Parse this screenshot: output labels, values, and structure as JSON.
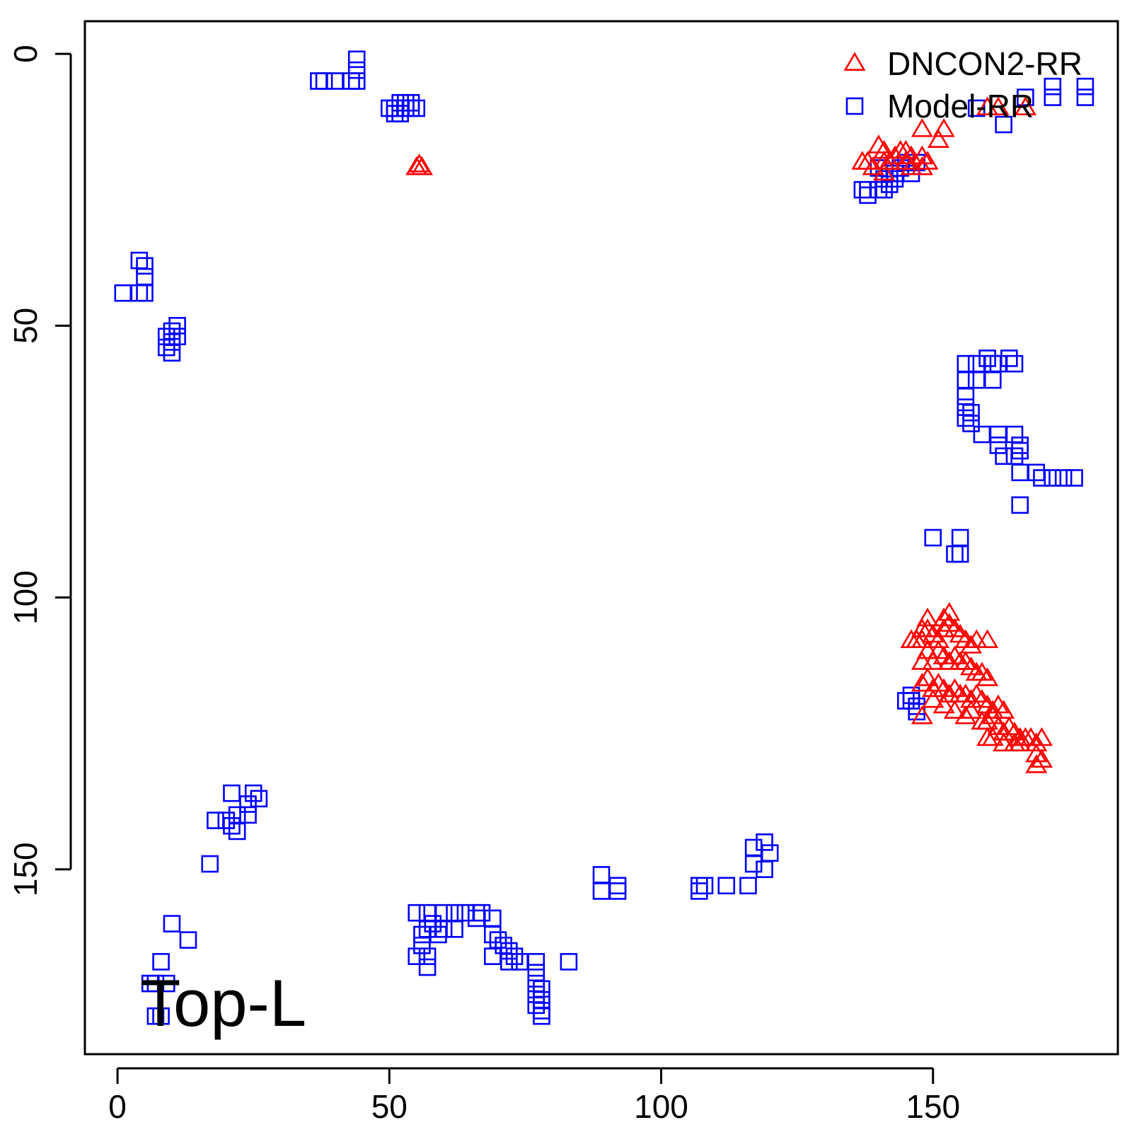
{
  "chart_data": {
    "type": "scatter",
    "title": "",
    "xlabel": "",
    "ylabel": "",
    "xlim": [
      -6,
      184
    ],
    "ylim": [
      184,
      -6
    ],
    "y_reversed": true,
    "x_ticks": [
      0,
      50,
      100,
      150
    ],
    "y_ticks": [
      0,
      50,
      100,
      150
    ],
    "x_tick_labels": [
      "0",
      "50",
      "100",
      "150"
    ],
    "y_tick_labels": [
      "0",
      "50",
      "100",
      "150"
    ],
    "grid": false,
    "legend_position": "top-right",
    "annotation": "Top-L",
    "series": [
      {
        "name": "DNCON2-RR",
        "marker": "triangle",
        "color": "#ff0000",
        "points": [
          [
            55,
            21
          ],
          [
            56,
            21
          ],
          [
            55.5,
            20.5
          ],
          [
            137,
            20
          ],
          [
            138,
            20
          ],
          [
            139,
            21
          ],
          [
            140,
            17
          ],
          [
            141,
            18
          ],
          [
            141,
            20
          ],
          [
            142,
            20
          ],
          [
            141,
            22
          ],
          [
            143,
            19
          ],
          [
            144,
            18
          ],
          [
            145,
            18
          ],
          [
            145,
            20
          ],
          [
            146,
            19
          ],
          [
            146,
            21
          ],
          [
            148,
            19
          ],
          [
            148,
            21
          ],
          [
            149,
            20
          ],
          [
            148,
            14
          ],
          [
            151,
            16
          ],
          [
            152,
            14
          ],
          [
            160,
            10
          ],
          [
            162,
            10
          ],
          [
            167,
            10
          ],
          [
            146,
            108
          ],
          [
            147,
            108
          ],
          [
            148,
            106
          ],
          [
            148,
            108
          ],
          [
            149,
            104
          ],
          [
            149,
            106
          ],
          [
            150,
            107
          ],
          [
            151,
            108
          ],
          [
            152,
            104
          ],
          [
            152,
            106
          ],
          [
            153,
            103
          ],
          [
            153,
            105
          ],
          [
            154,
            106
          ],
          [
            155,
            107
          ],
          [
            156,
            108
          ],
          [
            157,
            109
          ],
          [
            158,
            108
          ],
          [
            160,
            108
          ],
          [
            148,
            112
          ],
          [
            149,
            110
          ],
          [
            150,
            112
          ],
          [
            151,
            110
          ],
          [
            152,
            111
          ],
          [
            153,
            112
          ],
          [
            154,
            111
          ],
          [
            155,
            112
          ],
          [
            156,
            112
          ],
          [
            157,
            113
          ],
          [
            158,
            114
          ],
          [
            159,
            114
          ],
          [
            160,
            115
          ],
          [
            148,
            116
          ],
          [
            149,
            115
          ],
          [
            150,
            117
          ],
          [
            151,
            116
          ],
          [
            152,
            117
          ],
          [
            153,
            118
          ],
          [
            154,
            117
          ],
          [
            155,
            118
          ],
          [
            156,
            118
          ],
          [
            157,
            119
          ],
          [
            158,
            118
          ],
          [
            159,
            119
          ],
          [
            160,
            120
          ],
          [
            161,
            121
          ],
          [
            162,
            120
          ],
          [
            163,
            121
          ],
          [
            148,
            122
          ],
          [
            150,
            119
          ],
          [
            152,
            120
          ],
          [
            154,
            121
          ],
          [
            156,
            122
          ],
          [
            157,
            121
          ],
          [
            159,
            123
          ],
          [
            160,
            123
          ],
          [
            161,
            122
          ],
          [
            162,
            124
          ],
          [
            163,
            125
          ],
          [
            164,
            124
          ],
          [
            165,
            125
          ],
          [
            166,
            126
          ],
          [
            167,
            126
          ],
          [
            168,
            126
          ],
          [
            169,
            127
          ],
          [
            169,
            129
          ],
          [
            170,
            126
          ],
          [
            169,
            131
          ],
          [
            170,
            130
          ],
          [
            166,
            127
          ],
          [
            165,
            127
          ],
          [
            163,
            127
          ],
          [
            161,
            126
          ],
          [
            160,
            126
          ]
        ]
      },
      {
        "name": "Model-RR",
        "marker": "square",
        "color": "#0000ff",
        "points": [
          [
            37,
            5
          ],
          [
            38,
            5
          ],
          [
            40,
            5
          ],
          [
            43,
            5
          ],
          [
            44,
            5
          ],
          [
            44,
            3
          ],
          [
            44,
            1
          ],
          [
            50,
            10
          ],
          [
            51,
            10
          ],
          [
            53,
            10
          ],
          [
            54,
            10
          ],
          [
            52,
            9
          ],
          [
            53,
            9
          ],
          [
            54,
            9
          ],
          [
            55,
            10
          ],
          [
            52,
            11
          ],
          [
            51,
            11
          ],
          [
            4,
            38
          ],
          [
            5,
            39
          ],
          [
            5,
            41
          ],
          [
            5,
            44
          ],
          [
            4,
            44
          ],
          [
            1,
            44
          ],
          [
            9,
            52
          ],
          [
            10,
            51
          ],
          [
            10,
            53
          ],
          [
            11,
            50
          ],
          [
            11,
            52
          ],
          [
            9,
            54
          ],
          [
            10,
            55
          ],
          [
            137,
            25
          ],
          [
            138,
            25
          ],
          [
            138,
            26
          ],
          [
            140,
            25
          ],
          [
            141,
            25
          ],
          [
            142,
            24
          ],
          [
            142,
            22
          ],
          [
            140,
            21
          ],
          [
            141,
            23
          ],
          [
            143,
            22
          ],
          [
            144,
            21
          ],
          [
            145,
            20
          ],
          [
            147,
            20
          ],
          [
            146,
            22
          ],
          [
            143,
            23
          ],
          [
            158,
            10
          ],
          [
            163,
            13
          ],
          [
            167,
            8
          ],
          [
            172,
            6
          ],
          [
            172,
            8
          ],
          [
            178,
            6
          ],
          [
            178,
            8
          ],
          [
            156,
            57
          ],
          [
            158,
            57
          ],
          [
            160,
            56
          ],
          [
            161,
            57
          ],
          [
            162,
            57
          ],
          [
            164,
            56
          ],
          [
            165,
            57
          ],
          [
            156,
            60
          ],
          [
            158,
            60
          ],
          [
            161,
            60
          ],
          [
            156,
            63
          ],
          [
            156,
            65
          ],
          [
            157,
            66
          ],
          [
            157,
            68
          ],
          [
            156,
            67
          ],
          [
            159,
            70
          ],
          [
            162,
            70
          ],
          [
            165,
            70
          ],
          [
            166,
            72
          ],
          [
            166,
            73
          ],
          [
            165,
            74
          ],
          [
            163,
            74
          ],
          [
            162,
            72
          ],
          [
            166,
            77
          ],
          [
            169,
            77
          ],
          [
            170,
            78
          ],
          [
            172,
            78
          ],
          [
            174,
            78
          ],
          [
            176,
            78
          ],
          [
            166,
            83
          ],
          [
            150,
            89
          ],
          [
            155,
            89
          ],
          [
            154,
            92
          ],
          [
            155,
            92
          ],
          [
            146,
            119
          ],
          [
            147,
            120
          ],
          [
            147,
            121
          ],
          [
            145,
            119
          ],
          [
            146,
            118
          ],
          [
            21,
            136
          ],
          [
            25,
            136
          ],
          [
            26,
            137
          ],
          [
            24,
            138
          ],
          [
            24,
            140
          ],
          [
            22,
            140
          ],
          [
            20,
            141
          ],
          [
            18,
            141
          ],
          [
            21,
            142
          ],
          [
            22,
            143
          ],
          [
            17,
            149
          ],
          [
            10,
            160
          ],
          [
            13,
            163
          ],
          [
            8,
            167
          ],
          [
            7,
            171
          ],
          [
            9,
            171
          ],
          [
            6,
            171
          ],
          [
            7,
            177
          ],
          [
            8,
            177
          ],
          [
            55,
            158
          ],
          [
            57,
            158
          ],
          [
            60,
            158
          ],
          [
            62,
            158
          ],
          [
            64,
            158
          ],
          [
            66,
            158
          ],
          [
            66,
            159
          ],
          [
            67,
            158
          ],
          [
            69,
            159
          ],
          [
            69,
            162
          ],
          [
            70,
            163
          ],
          [
            71,
            164
          ],
          [
            72,
            165
          ],
          [
            73,
            166
          ],
          [
            74,
            167
          ],
          [
            72,
            167
          ],
          [
            69,
            166
          ],
          [
            57,
            161
          ],
          [
            58,
            160
          ],
          [
            59,
            162
          ],
          [
            60,
            161
          ],
          [
            56,
            162
          ],
          [
            56,
            164
          ],
          [
            55,
            166
          ],
          [
            57,
            166
          ],
          [
            57,
            168
          ],
          [
            62,
            161
          ],
          [
            77,
            167
          ],
          [
            77,
            169
          ],
          [
            77,
            171
          ],
          [
            78,
            172
          ],
          [
            77,
            173
          ],
          [
            78,
            174
          ],
          [
            77,
            175
          ],
          [
            78,
            176
          ],
          [
            78,
            177
          ],
          [
            83,
            167
          ],
          [
            89,
            151
          ],
          [
            89,
            154
          ],
          [
            92,
            153
          ],
          [
            92,
            154
          ],
          [
            107,
            153
          ],
          [
            107,
            154
          ],
          [
            108,
            153
          ],
          [
            112,
            153
          ],
          [
            116,
            153
          ],
          [
            117,
            149
          ],
          [
            117,
            146
          ],
          [
            119,
            145
          ],
          [
            120,
            147
          ],
          [
            119,
            150
          ]
        ]
      }
    ]
  }
}
